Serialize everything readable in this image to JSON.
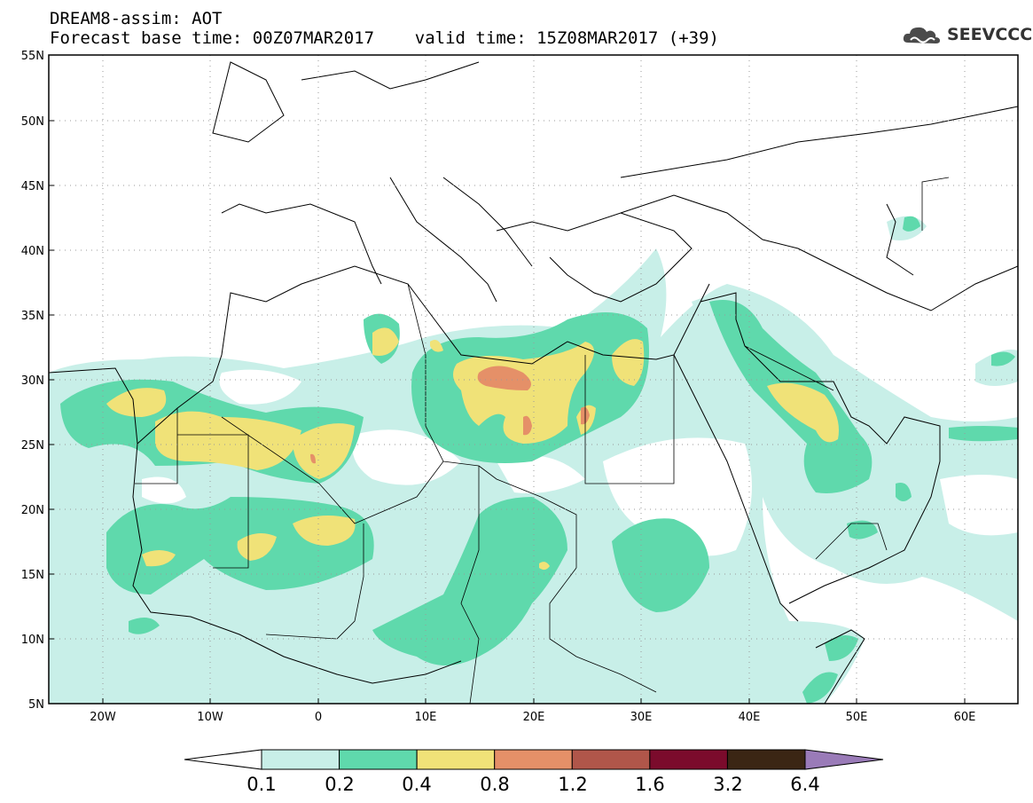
{
  "header": {
    "line1": "DREAM8-assim: AOT",
    "line2": "Forecast base time: 00Z07MAR2017    valid time: 15Z08MAR2017 (+39)"
  },
  "logo": {
    "text": "SEEVCCC",
    "icon": "cloud-icon"
  },
  "map": {
    "lat_range": [
      5,
      55
    ],
    "lon_range": [
      -25,
      65
    ],
    "lat_labels": [
      "55N",
      "50N",
      "45N",
      "40N",
      "35N",
      "30N",
      "25N",
      "20N",
      "15N",
      "10N",
      "5N"
    ],
    "lon_labels": [
      "20W",
      "10W",
      "0",
      "10E",
      "20E",
      "30E",
      "40E",
      "50E",
      "60E"
    ],
    "grid": true
  },
  "colorbar": {
    "labels": [
      "0.1",
      "0.2",
      "0.4",
      "0.8",
      "1.2",
      "1.6",
      "3.2",
      "6.4"
    ],
    "colors": [
      "#c8efe8",
      "#5fd9ac",
      "#f0e278",
      "#e59068",
      "#b0564a",
      "#7b0b2c",
      "#3b2614",
      "#9a7bb8"
    ],
    "below_color": "#ffffff"
  },
  "colors": {
    "level1": "#c8efe8",
    "level2": "#5fd9ac",
    "level3": "#f0e278",
    "level4": "#e59068"
  }
}
